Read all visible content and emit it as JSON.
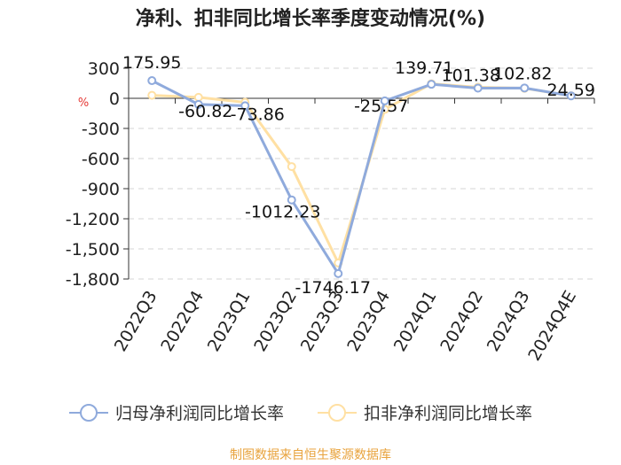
{
  "chart_data": {
    "type": "line",
    "title": "净利、扣非同比增长率季度变动情况(%)",
    "ylabel": "%",
    "categories": [
      "2022Q3",
      "2022Q4",
      "2023Q1",
      "2023Q2",
      "2023Q3",
      "2023Q4",
      "2024Q1",
      "2024Q2",
      "2024Q3",
      "2024Q4E"
    ],
    "ylim": [
      -1800,
      300
    ],
    "yticks": [
      300,
      0,
      -300,
      -600,
      -900,
      -1200,
      -1500,
      -1800
    ],
    "ytick_labels": [
      "300",
      "0",
      "-300",
      "-600",
      "-900",
      "-1,200",
      "-1,500",
      "-1,800"
    ],
    "grid": true,
    "legend_position": "bottom",
    "series": [
      {
        "name": "归母净利润同比增长率",
        "color": "#8FAADC",
        "values": [
          175.95,
          -60.82,
          -73.86,
          -1012.23,
          -1746.17,
          -25.57,
          139.71,
          101.38,
          102.82,
          24.59
        ],
        "labels": [
          "175.95",
          "-60.82",
          "-73.86",
          "-1012.23",
          "-1746.17",
          "-25.57",
          "139.71",
          "101.38",
          "102.82",
          "24.59"
        ]
      },
      {
        "name": "扣非净利润同比增长率",
        "color": "#FFE0A3",
        "values": [
          30,
          10,
          -40,
          -680,
          -1640,
          -110,
          145,
          110,
          100,
          25
        ]
      }
    ],
    "source": "制图数据来自恒生聚源数据库",
    "source_color": "#E8A33D",
    "unit_color": "#E53935"
  }
}
